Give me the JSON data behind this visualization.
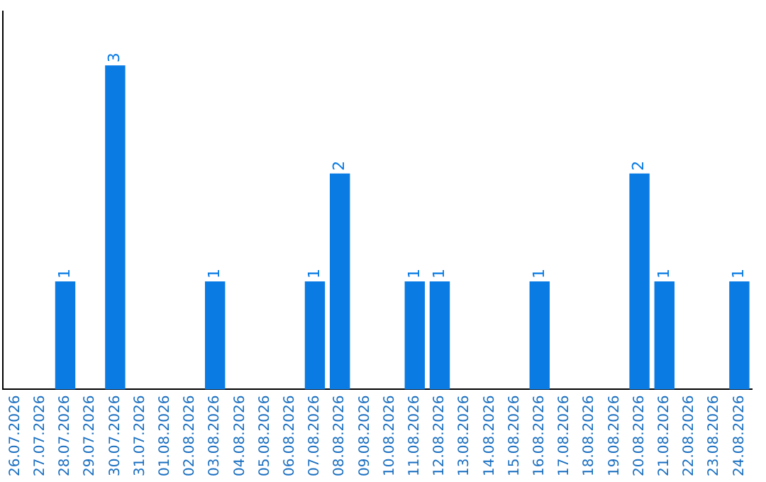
{
  "chart_data": {
    "type": "bar",
    "categories": [
      "26.07.2026",
      "27.07.2026",
      "28.07.2026",
      "29.07.2026",
      "30.07.2026",
      "31.07.2026",
      "01.08.2026",
      "02.08.2026",
      "03.08.2026",
      "04.08.2026",
      "05.08.2026",
      "06.08.2026",
      "07.08.2026",
      "08.08.2026",
      "09.08.2026",
      "10.08.2026",
      "11.08.2026",
      "12.08.2026",
      "13.08.2026",
      "14.08.2026",
      "15.08.2026",
      "16.08.2026",
      "17.08.2026",
      "18.08.2026",
      "19.08.2026",
      "20.08.2026",
      "21.08.2026",
      "22.08.2026",
      "23.08.2026",
      "24.08.2026"
    ],
    "values": [
      null,
      null,
      1,
      null,
      3,
      null,
      null,
      null,
      1,
      null,
      null,
      null,
      1,
      2,
      null,
      null,
      1,
      1,
      null,
      null,
      null,
      1,
      null,
      null,
      null,
      2,
      1,
      null,
      null,
      1
    ],
    "data_labels": true,
    "color": "#0a7be3",
    "grid": false,
    "legend": false,
    "tick_labels": "x"
  }
}
